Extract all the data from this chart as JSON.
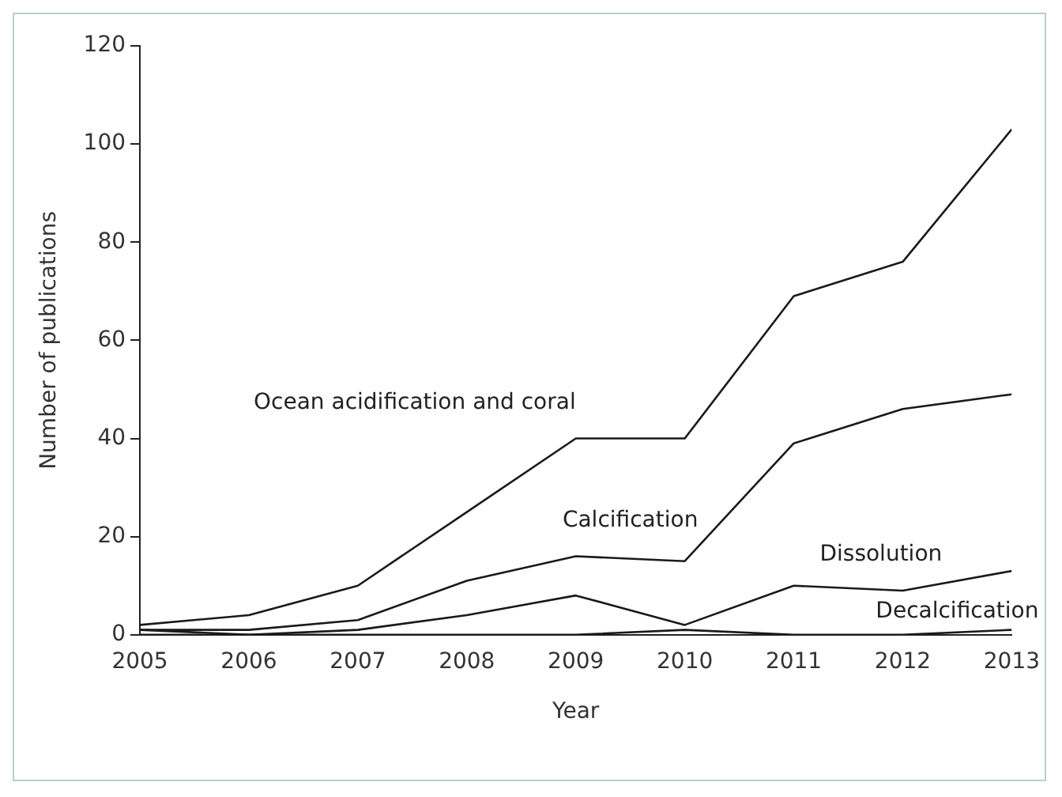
{
  "chart_data": {
    "type": "line",
    "xlabel": "Year",
    "ylabel": "Number of publications",
    "x": [
      2005,
      2006,
      2007,
      2008,
      2009,
      2010,
      2011,
      2012,
      2013
    ],
    "series": [
      {
        "name": "Ocean acidification and coral",
        "color": "#1a1a1a",
        "values": [
          2,
          4,
          10,
          25,
          40,
          40,
          69,
          76,
          103
        ]
      },
      {
        "name": "Calcification",
        "color": "#1a1a1a",
        "values": [
          1,
          1,
          3,
          11,
          16,
          15,
          39,
          46,
          49
        ]
      },
      {
        "name": "Dissolution",
        "color": "#1a1a1a",
        "values": [
          1,
          0,
          1,
          4,
          8,
          2,
          10,
          9,
          13
        ]
      },
      {
        "name": "Decalcification",
        "color": "#1a1a1a",
        "values": [
          0,
          0,
          0,
          0,
          0,
          1,
          0,
          0,
          1
        ]
      }
    ],
    "xlim": [
      2005,
      2013
    ],
    "xticks": [
      2005,
      2006,
      2007,
      2008,
      2009,
      2010,
      2011,
      2012,
      2013
    ],
    "ylim": [
      0,
      120
    ],
    "yticks": [
      0,
      20,
      40,
      60,
      80,
      100,
      120
    ],
    "grid": false,
    "legend": false,
    "marker": "none",
    "line_style": "solid"
  }
}
